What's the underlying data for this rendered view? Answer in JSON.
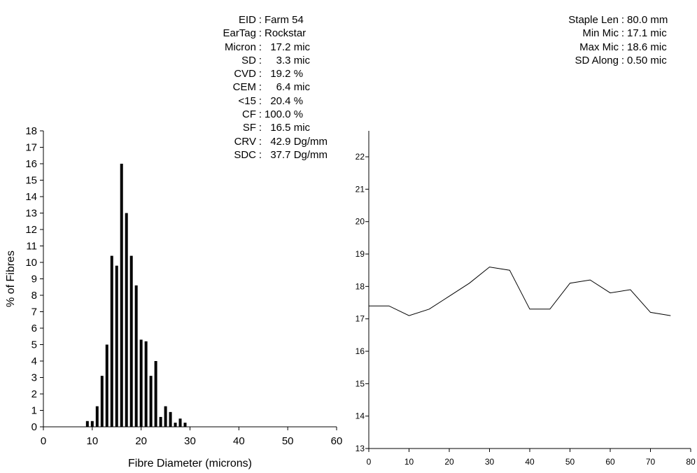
{
  "stats_left": [
    {
      "key": "EID",
      "value": "Farm 54"
    },
    {
      "key": "EarTag",
      "value": "Rockstar"
    },
    {
      "key": "Micron",
      "value": "  17.2 mic"
    },
    {
      "key": "SD",
      "value": "    3.3 mic"
    },
    {
      "key": "CVD",
      "value": "  19.2 %"
    },
    {
      "key": "CEM",
      "value": "    6.4 mic"
    },
    {
      "key": "<15",
      "value": "  20.4 %"
    },
    {
      "key": "CF",
      "value": "100.0 %"
    },
    {
      "key": "SF",
      "value": "  16.5 mic"
    },
    {
      "key": "CRV",
      "value": "  42.9 Dg/mm"
    },
    {
      "key": "SDC",
      "value": "  37.7 Dg/mm"
    }
  ],
  "stats_right": [
    {
      "key": "Staple Len",
      "value": "80.0 mm"
    },
    {
      "key": "Min Mic",
      "value": "17.1 mic"
    },
    {
      "key": "Max Mic",
      "value": "18.6 mic"
    },
    {
      "key": "SD Along",
      "value": "0.50 mic"
    }
  ],
  "chart_data": [
    {
      "type": "bar",
      "title": "",
      "xlabel": "Fibre Diameter (microns)",
      "ylabel": "% of Fibres",
      "xlim": [
        0,
        60
      ],
      "ylim": [
        0,
        18
      ],
      "xticks": [
        0,
        10,
        20,
        30,
        40,
        50,
        60
      ],
      "yticks": [
        0,
        1,
        2,
        3,
        4,
        5,
        6,
        7,
        8,
        9,
        10,
        11,
        12,
        13,
        14,
        15,
        16,
        17,
        18
      ],
      "x": [
        9,
        10,
        11,
        12,
        13,
        14,
        15,
        16,
        17,
        18,
        19,
        20,
        21,
        22,
        23,
        24,
        25,
        26,
        27,
        28,
        29
      ],
      "values": [
        0.35,
        0.35,
        1.25,
        3.1,
        5.0,
        10.4,
        9.8,
        16.0,
        13.0,
        10.4,
        8.6,
        5.3,
        5.2,
        3.1,
        4.0,
        0.6,
        1.25,
        0.9,
        0.25,
        0.5,
        0.25
      ],
      "grid": false
    },
    {
      "type": "line",
      "title": "",
      "xlabel": "",
      "ylabel": "",
      "xlim": [
        0,
        80
      ],
      "ylim": [
        13,
        23
      ],
      "xticks": [
        0,
        10,
        20,
        30,
        40,
        50,
        60,
        70,
        80
      ],
      "yticks": [
        13,
        14,
        15,
        16,
        17,
        18,
        19,
        20,
        21,
        22
      ],
      "x": [
        0,
        5,
        10,
        15,
        20,
        25,
        30,
        35,
        40,
        45,
        50,
        55,
        60,
        65,
        70,
        75
      ],
      "y": [
        17.4,
        17.4,
        17.1,
        17.3,
        17.7,
        18.1,
        18.6,
        18.5,
        17.3,
        17.3,
        18.1,
        18.2,
        17.8,
        17.9,
        17.2,
        17.1
      ],
      "grid": false
    }
  ]
}
